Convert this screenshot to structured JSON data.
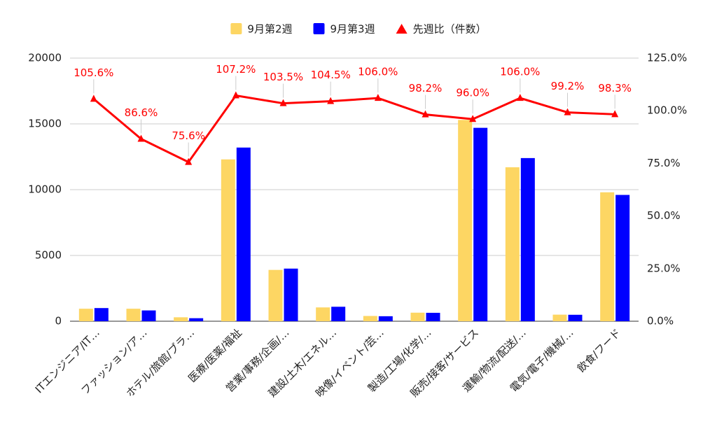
{
  "chart_data": {
    "type": "bar",
    "categories": [
      "ITエンジニア/IT…",
      "ファッション/ア…",
      "ホテル/旅館/ブラ…",
      "医療/医薬/福祉",
      "営業/事務/企画/…",
      "建設/土木/エネル…",
      "映像/イベント/芸…",
      "製造/工場/化学/…",
      "販売/接客/サービス",
      "運輸/物流/配送/…",
      "電気/電子/機械/…",
      "飲食/フード"
    ],
    "series": [
      {
        "name": "9月第2週",
        "type": "bar",
        "color": "#fdd663",
        "values": [
          950,
          950,
          300,
          12300,
          3900,
          1050,
          400,
          650,
          15300,
          11700,
          500,
          9800
        ]
      },
      {
        "name": "9月第3週",
        "type": "bar",
        "color": "#0000ff",
        "values": [
          1000,
          820,
          230,
          13200,
          4000,
          1100,
          380,
          640,
          14700,
          12400,
          490,
          9600
        ]
      },
      {
        "name": "先週比（件数）",
        "type": "line",
        "axis": "y2",
        "color": "#ff0000",
        "values": [
          105.6,
          86.6,
          75.6,
          107.2,
          103.5,
          104.5,
          106.0,
          98.2,
          96.0,
          106.0,
          99.2,
          98.3
        ],
        "value_labels": [
          "105.6%",
          "86.6%",
          "75.6%",
          "107.2%",
          "103.5%",
          "104.5%",
          "106.0%",
          "98.2%",
          "96.0%",
          "106.0%",
          "99.2%",
          "98.3%"
        ]
      }
    ],
    "ylim": [
      0,
      20000
    ],
    "yticks": [
      0,
      5000,
      10000,
      15000,
      20000
    ],
    "y2lim": [
      0,
      125
    ],
    "y2ticks": [
      {
        "value": 0,
        "label": "0.0%"
      },
      {
        "value": 25,
        "label": "25.0%"
      },
      {
        "value": 50,
        "label": "50.0%"
      },
      {
        "value": 75,
        "label": "75.0%"
      },
      {
        "value": 100,
        "label": "100.0%"
      },
      {
        "value": 125,
        "label": "125.0%"
      }
    ],
    "grid": true,
    "legend": "top"
  }
}
